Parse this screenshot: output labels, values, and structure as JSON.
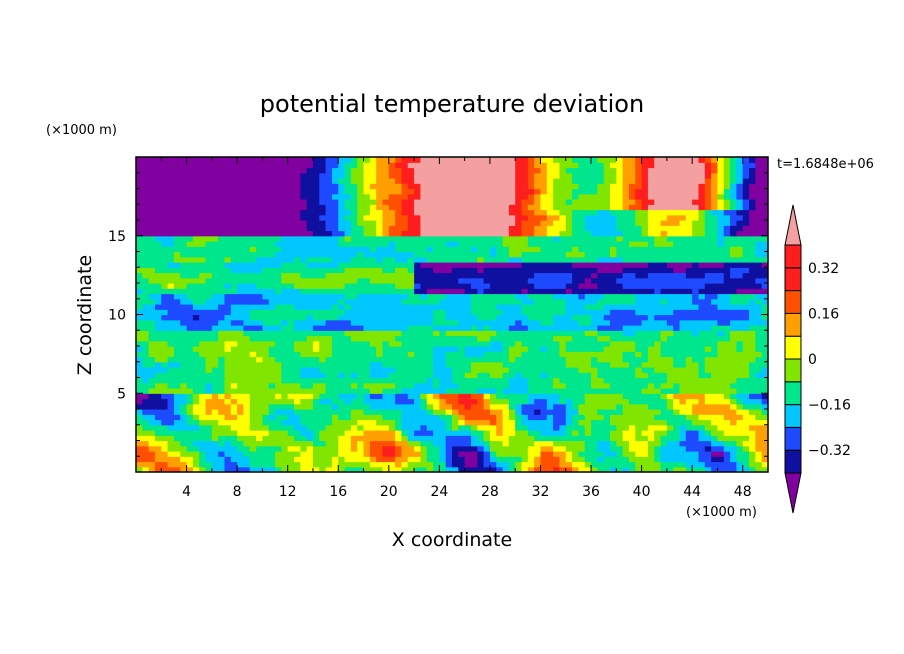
{
  "chart_data": {
    "type": "heatmap",
    "title": "potential temperature deviation",
    "xlabel": "X coordinate",
    "ylabel": "Z coordinate",
    "x_unit": "(×1000 m)",
    "y_unit": "(×1000 m)",
    "time_label": "t=1.6848e+06",
    "xlim": [
      0,
      50
    ],
    "ylim": [
      0,
      20
    ],
    "x_ticks": [
      4,
      8,
      12,
      16,
      20,
      24,
      28,
      32,
      36,
      40,
      44,
      48
    ],
    "y_ticks": [
      5,
      10,
      15
    ],
    "x_tick_labels": [
      "4",
      "8",
      "12",
      "16",
      "20",
      "24",
      "28",
      "32",
      "36",
      "40",
      "44",
      "48"
    ],
    "y_tick_labels": [
      "5",
      "10",
      "15"
    ],
    "colorbar": {
      "levels": [
        -0.4,
        -0.32,
        -0.24,
        -0.16,
        -0.08,
        0,
        0.08,
        0.16,
        0.24,
        0.32,
        0.4
      ],
      "labels": [
        "0.32",
        "0.16",
        "0",
        "−0.16",
        "−0.32"
      ],
      "label_values": [
        0.32,
        0.16,
        0,
        -0.16,
        -0.32
      ],
      "colors": [
        "#8000a0",
        "#1010a0",
        "#1e4bff",
        "#00c8ff",
        "#00e68c",
        "#80e600",
        "#ffff00",
        "#ffa000",
        "#ff5000",
        "#ff1e1e",
        "#f4a0a0"
      ],
      "extend": "both"
    },
    "grid": false
  }
}
